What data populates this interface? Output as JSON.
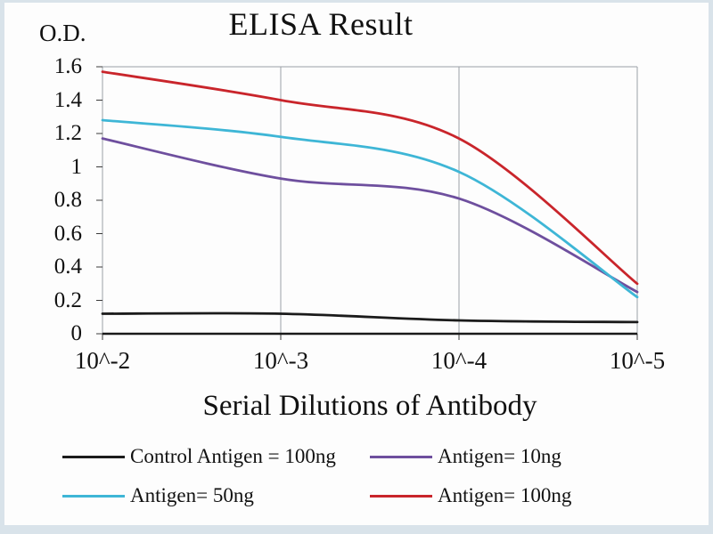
{
  "chart_data": {
    "type": "line",
    "title": "ELISA Result",
    "ylabel": "O.D.",
    "xlabel": "Serial Dilutions of Antibody",
    "x_tick_labels": [
      "10^-2",
      "10^-3",
      "10^-4",
      "10^-5"
    ],
    "y_ticks": [
      0,
      0.2,
      0.4,
      0.6,
      0.8,
      1,
      1.2,
      1.4,
      1.6
    ],
    "ylim": [
      0,
      1.6
    ],
    "grid": "vertical-only",
    "legend_position": "bottom",
    "axis_color": "#1a1a1a",
    "grid_color": "#9ba1a6",
    "series": [
      {
        "name": "Control Antigen = 100ng",
        "color": "#1b1b1b",
        "values": [
          0.12,
          0.12,
          0.08,
          0.07
        ]
      },
      {
        "name": "Antigen= 10ng",
        "color": "#6e4f9e",
        "values": [
          1.17,
          0.93,
          0.81,
          0.25
        ]
      },
      {
        "name": "Antigen= 50ng",
        "color": "#3eb6d6",
        "values": [
          1.28,
          1.18,
          0.97,
          0.22
        ]
      },
      {
        "name": "Antigen= 100ng",
        "color": "#c9252b",
        "values": [
          1.57,
          1.4,
          1.17,
          0.3
        ]
      }
    ]
  }
}
